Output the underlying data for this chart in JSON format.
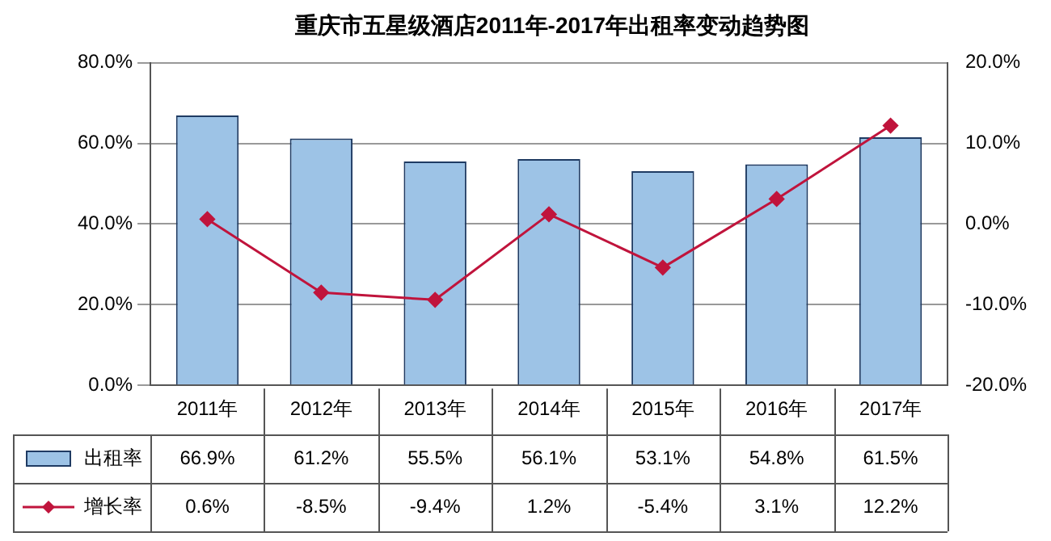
{
  "chart_data": {
    "type": "bar",
    "title": "重庆市五星级酒店2011年-2017年出租率变动趋势图",
    "categories": [
      "2011年",
      "2012年",
      "2013年",
      "2014年",
      "2015年",
      "2016年",
      "2017年"
    ],
    "series": [
      {
        "name": "出租率",
        "color": "#9dc3e6",
        "values": [
          66.9,
          61.2,
          55.5,
          56.1,
          53.1,
          54.8,
          61.5
        ],
        "value_labels": [
          "66.9%",
          "61.2%",
          "55.5%",
          "56.1%",
          "53.1%",
          "54.8%",
          "61.5%"
        ]
      },
      {
        "name": "增长率",
        "type": "line",
        "axis": "y2",
        "color": "#c0143c",
        "marker": "diamond",
        "values": [
          0.6,
          -8.5,
          -9.4,
          1.2,
          -5.4,
          3.1,
          12.2
        ],
        "value_labels": [
          "0.6%",
          "-8.5%",
          "-9.4%",
          "1.2%",
          "-5.4%",
          "3.1%",
          "12.2%"
        ]
      }
    ],
    "ylim": [
      0,
      80
    ],
    "yticks": [
      {
        "value": 0,
        "label": "0.0%"
      },
      {
        "value": 20,
        "label": "20.0%"
      },
      {
        "value": 40,
        "label": "40.0%"
      },
      {
        "value": 60,
        "label": "60.0%"
      },
      {
        "value": 80,
        "label": "80.0%"
      }
    ],
    "y2lim": [
      -20,
      20
    ],
    "y2ticks": [
      {
        "value": -20,
        "label": "-20.0%"
      },
      {
        "value": -10,
        "label": "-10.0%"
      },
      {
        "value": 0,
        "label": "0.0%"
      },
      {
        "value": 10,
        "label": "10.0%"
      },
      {
        "value": 20,
        "label": "20.0%"
      }
    ],
    "grid": "y",
    "legend": "bottom left"
  }
}
